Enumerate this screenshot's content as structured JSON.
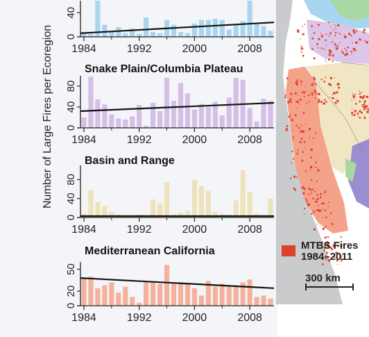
{
  "figure": {
    "y_axis_label": "Number of Large Fires per Ecoregion"
  },
  "chart_data": [
    {
      "type": "bar",
      "title": "",
      "xlabel": "",
      "ylabel": "",
      "x_ticks": [
        "1984",
        "1992",
        "2000",
        "2008"
      ],
      "y_ticks": [
        "0",
        "40"
      ],
      "ylim": [
        0,
        60
      ],
      "color": "#a9d5f0",
      "categories": [
        1984,
        1985,
        1986,
        1987,
        1988,
        1989,
        1990,
        1991,
        1992,
        1993,
        1994,
        1995,
        1996,
        1997,
        1998,
        1999,
        2000,
        2001,
        2002,
        2003,
        2004,
        2005,
        2006,
        2007,
        2008,
        2009,
        2010,
        2011
      ],
      "values": [
        8,
        5,
        60,
        20,
        10,
        16,
        6,
        14,
        5,
        32,
        8,
        6,
        28,
        20,
        8,
        6,
        22,
        28,
        28,
        30,
        28,
        12,
        22,
        26,
        60,
        22,
        18,
        10
      ],
      "trend": [
        6,
        24
      ]
    },
    {
      "type": "bar",
      "title": "Snake Plain/Columbia Plateau",
      "xlabel": "",
      "ylabel": "",
      "x_ticks": [
        "1984",
        "1992",
        "2000",
        "2008"
      ],
      "y_ticks": [
        "0",
        "40",
        "80"
      ],
      "ylim": [
        0,
        100
      ],
      "color": "#d4bfe6",
      "categories": [
        1984,
        1985,
        1986,
        1987,
        1988,
        1989,
        1990,
        1991,
        1992,
        1993,
        1994,
        1995,
        1996,
        1997,
        1998,
        1999,
        2000,
        2001,
        2002,
        2003,
        2004,
        2005,
        2006,
        2007,
        2008,
        2009,
        2010,
        2011
      ],
      "values": [
        20,
        98,
        55,
        45,
        26,
        18,
        16,
        22,
        44,
        4,
        48,
        32,
        96,
        52,
        86,
        66,
        35,
        46,
        40,
        50,
        24,
        58,
        96,
        92,
        38,
        12,
        56,
        52
      ],
      "trend": [
        32,
        48
      ]
    },
    {
      "type": "bar",
      "title": "Basin and Range",
      "xlabel": "",
      "ylabel": "",
      "x_ticks": [
        "1984",
        "1992",
        "2000",
        "2008"
      ],
      "y_ticks": [
        "0",
        "40",
        "80"
      ],
      "ylim": [
        0,
        110
      ],
      "color": "#eee2ba",
      "categories": [
        1984,
        1985,
        1986,
        1987,
        1988,
        1989,
        1990,
        1991,
        1992,
        1993,
        1994,
        1995,
        1996,
        1997,
        1998,
        1999,
        2000,
        2001,
        2002,
        2003,
        2004,
        2005,
        2006,
        2007,
        2008,
        2009,
        2010,
        2011
      ],
      "values": [
        8,
        58,
        32,
        24,
        12,
        6,
        4,
        4,
        6,
        3,
        38,
        30,
        74,
        6,
        10,
        14,
        80,
        66,
        56,
        12,
        8,
        6,
        36,
        100,
        54,
        8,
        6,
        40
      ],
      "trend": [
        3,
        3
      ]
    },
    {
      "type": "bar",
      "title": "Mediterranean California",
      "xlabel": "",
      "ylabel": "",
      "x_ticks": [
        "1984",
        "1992",
        "2000",
        "2008"
      ],
      "y_ticks": [
        "0",
        "20",
        "50"
      ],
      "ylim": [
        0,
        60
      ],
      "color": "#f4b29d",
      "categories": [
        1984,
        1985,
        1986,
        1987,
        1988,
        1989,
        1990,
        1991,
        1992,
        1993,
        1994,
        1995,
        1996,
        1997,
        1998,
        1999,
        2000,
        2001,
        2002,
        2003,
        2004,
        2005,
        2006,
        2007,
        2008,
        2009,
        2010,
        2011
      ],
      "values": [
        38,
        40,
        24,
        28,
        32,
        18,
        26,
        12,
        4,
        32,
        32,
        30,
        56,
        30,
        32,
        30,
        24,
        14,
        34,
        26,
        30,
        28,
        28,
        32,
        36,
        12,
        14,
        10
      ],
      "trend": [
        38,
        24
      ]
    }
  ],
  "map": {
    "legend_line1": "MTBS Fires",
    "legend_line2": "1984–2011",
    "scale_label": "300 km",
    "colors": {
      "fire": "#e1402c",
      "california": "#f4a28a",
      "basin": "#f1e6c4",
      "plateau": "#dcc6e8",
      "mountain": "#a9d5f0",
      "forest_green": "#a8d8a3",
      "purple": "#9b8ed0",
      "background": "#c9cbcd"
    }
  }
}
